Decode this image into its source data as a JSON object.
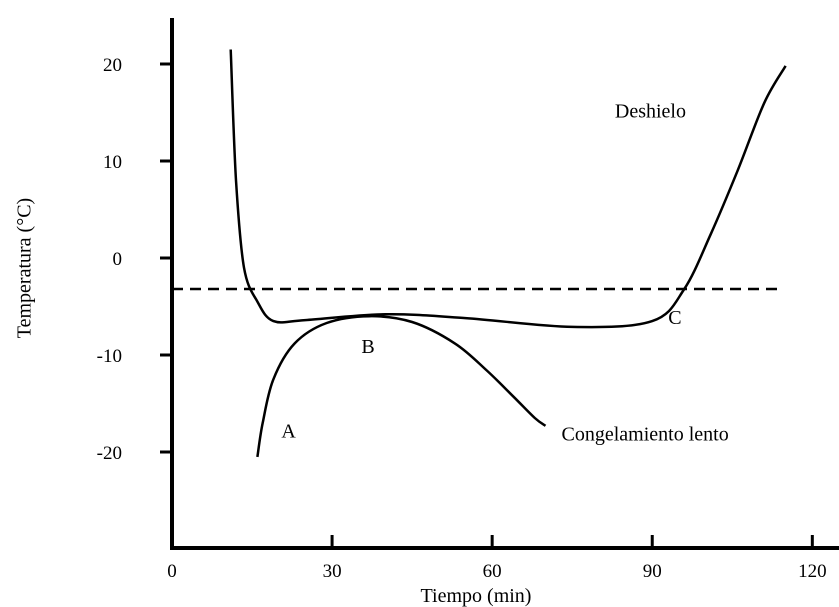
{
  "chart_data": {
    "type": "line",
    "title": "",
    "xlabel": "Tiempo (min)",
    "ylabel": "Temperatura (°C)",
    "xlim": [
      0,
      125
    ],
    "ylim": [
      -27,
      24
    ],
    "x_ticks": [
      0,
      30,
      60,
      90,
      120
    ],
    "x_tick_labels": [
      "0",
      "30",
      "60",
      "90",
      "120"
    ],
    "y_ticks": [
      20,
      10,
      0,
      -10,
      -20
    ],
    "y_tick_labels": [
      "20",
      "10",
      "0",
      "-10",
      "-20"
    ],
    "grid": false,
    "legend": "none",
    "series": [
      {
        "label_on_chart": "Deshielo",
        "style": "solid",
        "color": "#000000",
        "points": [
          {
            "x": 11,
            "y": 21.5
          },
          {
            "x": 12,
            "y": 8
          },
          {
            "x": 13.5,
            "y": -1
          },
          {
            "x": 16,
            "y": -4.5
          },
          {
            "x": 19,
            "y": -6.5
          },
          {
            "x": 25,
            "y": -6.4
          },
          {
            "x": 40,
            "y": -5.8
          },
          {
            "x": 55,
            "y": -6.2
          },
          {
            "x": 75,
            "y": -7.1
          },
          {
            "x": 90,
            "y": -6.5
          },
          {
            "x": 96,
            "y": -3.2
          },
          {
            "x": 101,
            "y": 2.5
          },
          {
            "x": 106,
            "y": 9
          },
          {
            "x": 111,
            "y": 16
          },
          {
            "x": 115,
            "y": 19.8
          }
        ]
      },
      {
        "label_on_chart": "Congelamiento lento",
        "style": "solid",
        "color": "#000000",
        "points": [
          {
            "x": 16,
            "y": -20.5
          },
          {
            "x": 17,
            "y": -17
          },
          {
            "x": 19,
            "y": -12.5
          },
          {
            "x": 23,
            "y": -8.8
          },
          {
            "x": 29,
            "y": -6.7
          },
          {
            "x": 37,
            "y": -6
          },
          {
            "x": 45,
            "y": -6.6
          },
          {
            "x": 53,
            "y": -8.8
          },
          {
            "x": 59,
            "y": -11.6
          },
          {
            "x": 64,
            "y": -14.3
          },
          {
            "x": 68,
            "y": -16.5
          },
          {
            "x": 70,
            "y": -17.3
          }
        ]
      },
      {
        "label_on_chart": "",
        "style": "dashed",
        "color": "#000000",
        "points": [
          {
            "x": 0,
            "y": -3.2
          },
          {
            "x": 114,
            "y": -3.2
          }
        ]
      }
    ],
    "annotations": [
      {
        "text": "A",
        "x": 20.5,
        "y": -18.5
      },
      {
        "text": "B",
        "x": 35.5,
        "y": -9.8
      },
      {
        "text": "C",
        "x": 93,
        "y": -6.8
      },
      {
        "text": "Deshielo",
        "x": 83,
        "y": 14.5
      },
      {
        "text": "Congelamiento lento",
        "x": 73,
        "y": -18.8
      }
    ]
  }
}
